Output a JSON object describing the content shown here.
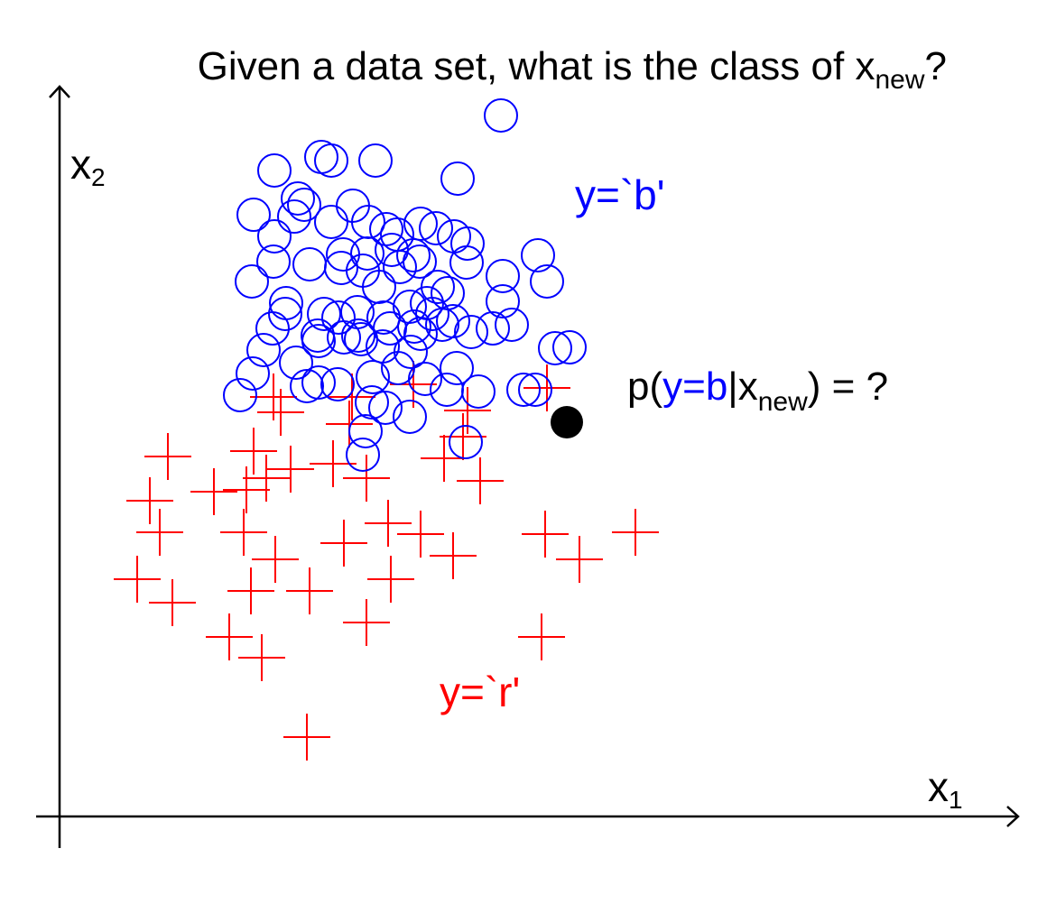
{
  "chart_data": {
    "type": "scatter",
    "title": {
      "main": "Given a data set, what is the class of x",
      "sub": "new",
      "suffix": "?"
    },
    "axes": {
      "x": {
        "label": "x",
        "sub": "1"
      },
      "y": {
        "label": "x",
        "sub": "2"
      },
      "ticks": false,
      "grid": false
    },
    "class_labels": {
      "blue": "y=`b'",
      "red": "y=`r'"
    },
    "query": {
      "prefix": "p(",
      "cls": "y=b",
      "bar": "|x",
      "sub": "new",
      "suffix": ") = ?"
    },
    "series": [
      {
        "name": "y=`b'",
        "marker": "open-circle",
        "color": "#0000ff",
        "points": [
          [
            555,
            128
          ],
          [
            356,
            174
          ],
          [
            367,
            178
          ],
          [
            416,
            178
          ],
          [
            304,
            189
          ],
          [
            507,
            198
          ],
          [
            330,
            220
          ],
          [
            337,
            227
          ],
          [
            391,
            228
          ],
          [
            281,
            238
          ],
          [
            326,
            240
          ],
          [
            367,
            246
          ],
          [
            408,
            246
          ],
          [
            428,
            254
          ],
          [
            466,
            248
          ],
          [
            483,
            253
          ],
          [
            440,
            260
          ],
          [
            503,
            262
          ],
          [
            304,
            262
          ],
          [
            518,
            270
          ],
          [
            380,
            282
          ],
          [
            407,
            281
          ],
          [
            434,
            277
          ],
          [
            458,
            283
          ],
          [
            465,
            290
          ],
          [
            517,
            291
          ],
          [
            343,
            293
          ],
          [
            303,
            290
          ],
          [
            596,
            283
          ],
          [
            557,
            306
          ],
          [
            378,
            297
          ],
          [
            402,
            300
          ],
          [
            443,
            296
          ],
          [
            279,
            312
          ],
          [
            606,
            312
          ],
          [
            420,
            318
          ],
          [
            485,
            318
          ],
          [
            496,
            325
          ],
          [
            317,
            336
          ],
          [
            316,
            348
          ],
          [
            557,
            334
          ],
          [
            359,
            348
          ],
          [
            375,
            352
          ],
          [
            396,
            346
          ],
          [
            425,
            352
          ],
          [
            454,
            340
          ],
          [
            473,
            336
          ],
          [
            479,
            348
          ],
          [
            502,
            356
          ],
          [
            302,
            364
          ],
          [
            352,
            372
          ],
          [
            381,
            374
          ],
          [
            400,
            376
          ],
          [
            432,
            364
          ],
          [
            459,
            362
          ],
          [
            466,
            370
          ],
          [
            490,
            360
          ],
          [
            522,
            368
          ],
          [
            546,
            364
          ],
          [
            567,
            360
          ],
          [
            292,
            388
          ],
          [
            328,
            402
          ],
          [
            353,
            378
          ],
          [
            397,
            372
          ],
          [
            424,
            384
          ],
          [
            455,
            390
          ],
          [
            615,
            386
          ],
          [
            631,
            385
          ],
          [
            280,
            414
          ],
          [
            353,
            424
          ],
          [
            374,
            426
          ],
          [
            413,
            418
          ],
          [
            441,
            408
          ],
          [
            471,
            420
          ],
          [
            506,
            408
          ],
          [
            530,
            434
          ],
          [
            266,
            438
          ],
          [
            340,
            428
          ],
          [
            412,
            446
          ],
          [
            427,
            452
          ],
          [
            495,
            432
          ],
          [
            580,
            432
          ],
          [
            593,
            432
          ],
          [
            405,
            478
          ],
          [
            454,
            462
          ],
          [
            516,
            490
          ],
          [
            402,
            504
          ]
        ]
      },
      {
        "name": "y=`r'",
        "marker": "plus",
        "color": "#ff0000",
        "points": [
          [
            303,
            440
          ],
          [
            311,
            457
          ],
          [
            390,
            440
          ],
          [
            387,
            470
          ],
          [
            458,
            426
          ],
          [
            518,
            455
          ],
          [
            513,
            484
          ],
          [
            606,
            430
          ],
          [
            186,
            506
          ],
          [
            281,
            500
          ],
          [
            369,
            514
          ],
          [
            406,
            530
          ],
          [
            492,
            508
          ],
          [
            532,
            533
          ],
          [
            322,
            520
          ],
          [
            295,
            530
          ],
          [
            273,
            543
          ],
          [
            237,
            545
          ],
          [
            166,
            555
          ],
          [
            177,
            590
          ],
          [
            270,
            590
          ],
          [
            305,
            620
          ],
          [
            381,
            602
          ],
          [
            430,
            580
          ],
          [
            466,
            592
          ],
          [
            502,
            616
          ],
          [
            604,
            592
          ],
          [
            642,
            620
          ],
          [
            704,
            590
          ],
          [
            152,
            642
          ],
          [
            191,
            668
          ],
          [
            278,
            655
          ],
          [
            343,
            655
          ],
          [
            433,
            642
          ],
          [
            406,
            690
          ],
          [
            600,
            706
          ],
          [
            254,
            706
          ],
          [
            290,
            729
          ],
          [
            340,
            817
          ]
        ]
      }
    ],
    "x_new": {
      "marker": "filled-circle",
      "color": "#000000",
      "point": [
        628,
        468
      ]
    },
    "colors": {
      "blue": "#0000ff",
      "red": "#ff0000",
      "black": "#000000"
    }
  }
}
